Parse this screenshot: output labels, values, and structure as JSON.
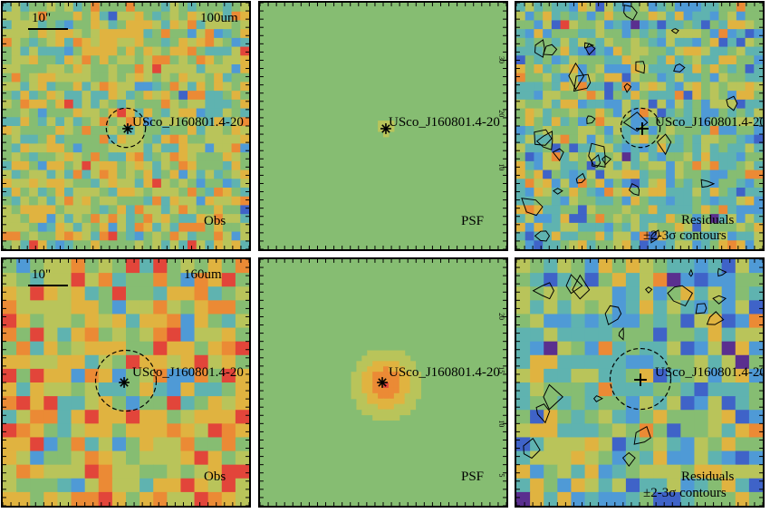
{
  "figure": {
    "rows": [
      {
        "band": "100um",
        "scale_bar": "10\"",
        "source_label": "USco_J160801.4-20",
        "obs_label": "Obs",
        "psf_label": "PSF",
        "residual_label": "Residuals",
        "contour_label": "±2-3σ contours"
      },
      {
        "band": "160um",
        "scale_bar": "10\"",
        "source_label": "USco_J160801.4-20",
        "obs_label": "Obs",
        "psf_label": "PSF",
        "residual_label": "Residuals",
        "contour_label": "±2-3σ contours"
      }
    ],
    "psf_tick_labels_top": [
      "30",
      "20",
      "10"
    ],
    "psf_tick_labels_bottom": [
      "20",
      "15",
      "10",
      "5"
    ],
    "colormap": [
      "#5a2f8f",
      "#3f63c8",
      "#4f9ad6",
      "#5fb3b0",
      "#86bd72",
      "#b9c45a",
      "#e0b340",
      "#eb8a35",
      "#e2453a"
    ]
  }
}
